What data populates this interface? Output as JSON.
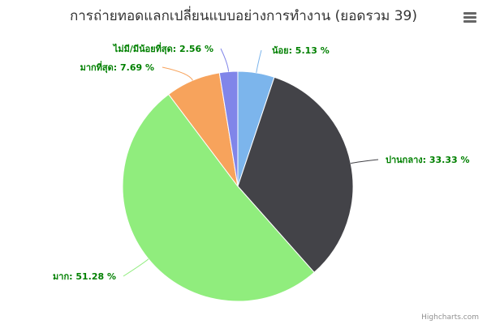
{
  "chart_data": {
    "type": "pie",
    "title": "การถ่ายทอดแลกเปลี่ยนแบบอย่างการทำงาน (ยอดรวม 39)",
    "slices": [
      {
        "label": "น้อย",
        "value": 5.13,
        "display": "น้อย: 5.13 %",
        "color": "#7cb5ec"
      },
      {
        "label": "ปานกลาง",
        "value": 33.33,
        "display": "ปานกลาง: 33.33 %",
        "color": "#434348"
      },
      {
        "label": "มาก",
        "value": 51.28,
        "display": "มาก: 51.28 %",
        "color": "#90ed7d"
      },
      {
        "label": "มากที่สุด",
        "value": 7.69,
        "display": "มากที่สุด: 7.69 %",
        "color": "#f7a35c"
      },
      {
        "label": "ไม่มี/มีน้อยที่สุด",
        "value": 2.56,
        "display": "ไม่มี/มีน้อยที่สุด: 2.56 %",
        "color": "#8085e9"
      }
    ]
  },
  "credits": "Highcharts.com",
  "menu_icon": "hamburger-menu-icon"
}
